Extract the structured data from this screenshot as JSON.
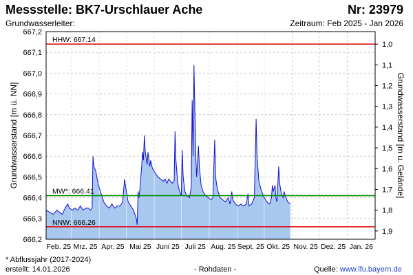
{
  "header": {
    "title": "Messstelle: BK7-Urschlauer Ache",
    "station_no": "Nr: 23979",
    "subtitle_left": "Grundwasserleiter:",
    "subtitle_right": "Zeitraum: Feb 2025 - Jan 2026"
  },
  "footer": {
    "note": "* Abflussjahr (2017-2024)",
    "created": "erstellt:  14.01.2026",
    "raw": "- Rohdaten -",
    "source_label": "Quelle: ",
    "source_link": "www.lfu.bayern.de"
  },
  "colors": {
    "fill": "#a8c8f0",
    "line": "#1010d0",
    "hhw": "#e00000",
    "mw": "#009000",
    "nnw": "#e00000",
    "grid": "#c8c8c8"
  },
  "chart_data": {
    "type": "area",
    "ylabel_left": "Grundwasserstand [m ü. NN]",
    "ylabel_right": "Grundwasserstand [m u. Gelände]",
    "ylim": [
      666.2,
      667.2
    ],
    "yticks": [
      "667,2",
      "667,1",
      "667,0",
      "666,9",
      "666,8",
      "666,7",
      "666,6",
      "666,5",
      "666,4",
      "666,3",
      "666,2"
    ],
    "yticks_right": [
      "1,0",
      "1,1",
      "1,2",
      "1,3",
      "1,4",
      "1,5",
      "1,6",
      "1,7",
      "1,8",
      "1,9"
    ],
    "xticks": [
      "Feb. 25",
      "Mrz. 25",
      "Apr. 25",
      "Mai 25",
      "Juni 25",
      "Juli 25",
      "Aug. 25",
      "Sept. 25",
      "Okt. 25",
      "Nov. 25",
      "Dez. 25",
      "Jan. 26"
    ],
    "x_start": "2025-02-01",
    "x_end": "2026-02-01",
    "reference_lines": [
      {
        "label": "HHW: 667.14",
        "value": 667.14,
        "color": "#e00000"
      },
      {
        "label": "MW*: 666.41",
        "value": 666.41,
        "color": "#009000"
      },
      {
        "label": "NNW: 666.26",
        "value": 666.26,
        "color": "#e00000"
      }
    ],
    "series": [
      {
        "values": [
          [
            "2025-02-01",
            666.34
          ],
          [
            "2025-02-05",
            666.33
          ],
          [
            "2025-02-09",
            666.32
          ],
          [
            "2025-02-13",
            666.34
          ],
          [
            "2025-02-16",
            666.33
          ],
          [
            "2025-02-19",
            666.32
          ],
          [
            "2025-02-22",
            666.35
          ],
          [
            "2025-02-25",
            666.37
          ],
          [
            "2025-02-27",
            666.35
          ],
          [
            "2025-03-02",
            666.34
          ],
          [
            "2025-03-05",
            666.35
          ],
          [
            "2025-03-08",
            666.34
          ],
          [
            "2025-03-11",
            666.36
          ],
          [
            "2025-03-14",
            666.34
          ],
          [
            "2025-03-17",
            666.35
          ],
          [
            "2025-03-20",
            666.35
          ],
          [
            "2025-03-22",
            666.34
          ],
          [
            "2025-03-24",
            666.35
          ],
          [
            "2025-03-25",
            666.6
          ],
          [
            "2025-03-26",
            666.55
          ],
          [
            "2025-03-28",
            666.53
          ],
          [
            "2025-03-31",
            666.46
          ],
          [
            "2025-04-03",
            666.42
          ],
          [
            "2025-04-06",
            666.38
          ],
          [
            "2025-04-09",
            666.36
          ],
          [
            "2025-04-12",
            666.35
          ],
          [
            "2025-04-15",
            666.37
          ],
          [
            "2025-04-18",
            666.35
          ],
          [
            "2025-04-21",
            666.36
          ],
          [
            "2025-04-24",
            666.36
          ],
          [
            "2025-04-27",
            666.38
          ],
          [
            "2025-04-29",
            666.49
          ],
          [
            "2025-05-01",
            666.43
          ],
          [
            "2025-05-03",
            666.38
          ],
          [
            "2025-05-06",
            666.36
          ],
          [
            "2025-05-09",
            666.34
          ],
          [
            "2025-05-12",
            666.3
          ],
          [
            "2025-05-13",
            666.27
          ],
          [
            "2025-05-14",
            666.43
          ],
          [
            "2025-05-15",
            666.4
          ],
          [
            "2025-05-16",
            666.44
          ],
          [
            "2025-05-18",
            666.55
          ],
          [
            "2025-05-19",
            666.62
          ],
          [
            "2025-05-20",
            666.58
          ],
          [
            "2025-05-21",
            666.7
          ],
          [
            "2025-05-22",
            666.62
          ],
          [
            "2025-05-24",
            666.56
          ],
          [
            "2025-05-25",
            666.62
          ],
          [
            "2025-05-27",
            666.55
          ],
          [
            "2025-05-28",
            666.58
          ],
          [
            "2025-05-30",
            666.54
          ],
          [
            "2025-06-02",
            666.52
          ],
          [
            "2025-06-05",
            666.5
          ],
          [
            "2025-06-08",
            666.49
          ],
          [
            "2025-06-11",
            666.48
          ],
          [
            "2025-06-13",
            666.49
          ],
          [
            "2025-06-15",
            666.47
          ],
          [
            "2025-06-17",
            666.49
          ],
          [
            "2025-06-19",
            666.48
          ],
          [
            "2025-06-21",
            666.47
          ],
          [
            "2025-06-23",
            666.48
          ],
          [
            "2025-06-24",
            666.72
          ],
          [
            "2025-06-25",
            666.58
          ],
          [
            "2025-06-27",
            666.47
          ],
          [
            "2025-06-29",
            666.43
          ],
          [
            "2025-07-01",
            666.41
          ],
          [
            "2025-07-02",
            666.63
          ],
          [
            "2025-07-03",
            666.5
          ],
          [
            "2025-07-05",
            666.43
          ],
          [
            "2025-07-07",
            666.41
          ],
          [
            "2025-07-10",
            666.4
          ],
          [
            "2025-07-12",
            666.45
          ],
          [
            "2025-07-13",
            666.87
          ],
          [
            "2025-07-14",
            666.6
          ],
          [
            "2025-07-15",
            667.04
          ],
          [
            "2025-07-16",
            666.82
          ],
          [
            "2025-07-17",
            666.6
          ],
          [
            "2025-07-18",
            666.5
          ],
          [
            "2025-07-20",
            666.65
          ],
          [
            "2025-07-21",
            666.55
          ],
          [
            "2025-07-23",
            666.46
          ],
          [
            "2025-07-25",
            666.43
          ],
          [
            "2025-07-28",
            666.41
          ],
          [
            "2025-07-31",
            666.4
          ],
          [
            "2025-08-03",
            666.39
          ],
          [
            "2025-08-05",
            666.4
          ],
          [
            "2025-08-07",
            666.68
          ],
          [
            "2025-08-08",
            666.5
          ],
          [
            "2025-08-10",
            666.44
          ],
          [
            "2025-08-13",
            666.4
          ],
          [
            "2025-08-16",
            666.39
          ],
          [
            "2025-08-19",
            666.38
          ],
          [
            "2025-08-22",
            666.4
          ],
          [
            "2025-08-24",
            666.37
          ],
          [
            "2025-08-26",
            666.43
          ],
          [
            "2025-08-27",
            666.39
          ],
          [
            "2025-08-30",
            666.37
          ],
          [
            "2025-09-02",
            666.36
          ],
          [
            "2025-09-05",
            666.37
          ],
          [
            "2025-09-08",
            666.36
          ],
          [
            "2025-09-11",
            666.37
          ],
          [
            "2025-09-13",
            666.42
          ],
          [
            "2025-09-14",
            666.36
          ],
          [
            "2025-09-17",
            666.37
          ],
          [
            "2025-09-20",
            666.4
          ],
          [
            "2025-09-22",
            666.78
          ],
          [
            "2025-09-23",
            666.6
          ],
          [
            "2025-09-25",
            666.48
          ],
          [
            "2025-09-28",
            666.43
          ],
          [
            "2025-10-01",
            666.4
          ],
          [
            "2025-10-04",
            666.38
          ],
          [
            "2025-10-07",
            666.37
          ],
          [
            "2025-10-09",
            666.4
          ],
          [
            "2025-10-10",
            666.46
          ],
          [
            "2025-10-11",
            666.43
          ],
          [
            "2025-10-13",
            666.46
          ],
          [
            "2025-10-14",
            666.4
          ],
          [
            "2025-10-15",
            666.38
          ],
          [
            "2025-10-17",
            666.55
          ],
          [
            "2025-10-18",
            666.47
          ],
          [
            "2025-10-20",
            666.42
          ],
          [
            "2025-10-22",
            666.4
          ],
          [
            "2025-10-23",
            666.43
          ],
          [
            "2025-10-25",
            666.4
          ],
          [
            "2025-10-27",
            666.38
          ],
          [
            "2025-10-30",
            666.37
          ]
        ]
      }
    ]
  }
}
